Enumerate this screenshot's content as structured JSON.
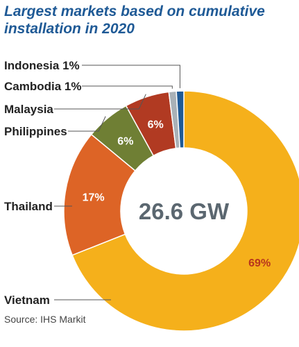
{
  "title": "Largest markets based on cumulative installation in 2020",
  "source": "Source: IHS Markit",
  "chart_data": {
    "type": "pie",
    "donut": true,
    "center_label": "26.6 GW",
    "slices": [
      {
        "name": "Vietnam",
        "value": 69,
        "label": "69%",
        "color": "#f5b01b",
        "label_color": "#b8361d"
      },
      {
        "name": "Thailand",
        "value": 17,
        "label": "17%",
        "color": "#dd6426",
        "label_color": "#ffffff"
      },
      {
        "name": "Philippines",
        "value": 6,
        "label": "6%",
        "color": "#6f7f34",
        "label_color": "#ffffff"
      },
      {
        "name": "Malaysia",
        "value": 6,
        "label": "6%",
        "color": "#b13a22",
        "label_color": "#ffffff"
      },
      {
        "name": "Cambodia",
        "value": 1,
        "label": "Cambodia 1%",
        "color": "#a9b1b7",
        "label_color": ""
      },
      {
        "name": "Indonesia",
        "value": 1,
        "label": "Indonesia 1%",
        "color": "#1f5a96",
        "label_color": ""
      }
    ],
    "legend": "leader-lines-left"
  }
}
